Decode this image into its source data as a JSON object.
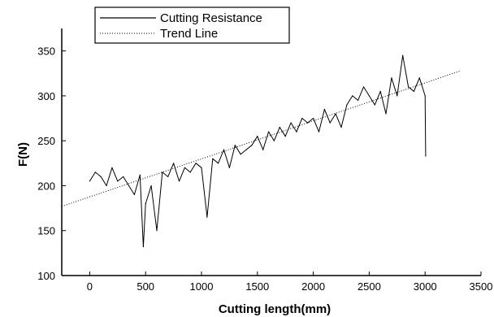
{
  "chart_data": {
    "type": "line",
    "xlabel": "Cutting length(mm)",
    "ylabel": "F(N)",
    "xlim": [
      -250,
      3500
    ],
    "ylim": [
      100,
      375
    ],
    "x_ticks": [
      0,
      500,
      1000,
      1500,
      2000,
      2500,
      3000,
      3500
    ],
    "y_ticks": [
      100,
      150,
      200,
      250,
      300,
      350
    ],
    "x_tick_labels": [
      "0",
      "500",
      "1000",
      "1500",
      "2000",
      "2500",
      "3000",
      "3500"
    ],
    "y_tick_labels": [
      "100",
      "150",
      "200",
      "250",
      "300",
      "350"
    ],
    "legend_position": "top-left",
    "series": [
      {
        "name": "Cutting Resistance",
        "style": "solid",
        "color": "#000000",
        "x": [
          0,
          50,
          100,
          150,
          200,
          250,
          300,
          350,
          400,
          450,
          480,
          500,
          550,
          600,
          650,
          700,
          750,
          800,
          850,
          900,
          950,
          1000,
          1050,
          1100,
          1150,
          1200,
          1250,
          1300,
          1350,
          1400,
          1450,
          1500,
          1550,
          1600,
          1650,
          1700,
          1750,
          1800,
          1850,
          1900,
          1950,
          2000,
          2050,
          2100,
          2150,
          2200,
          2250,
          2300,
          2350,
          2400,
          2450,
          2500,
          2550,
          2600,
          2650,
          2700,
          2750,
          2800,
          2850,
          2900,
          2950,
          3000,
          3005
        ],
        "y": [
          205,
          215,
          210,
          200,
          220,
          205,
          210,
          200,
          190,
          212,
          132,
          180,
          200,
          150,
          215,
          210,
          225,
          205,
          220,
          215,
          225,
          220,
          165,
          230,
          225,
          240,
          220,
          245,
          235,
          240,
          245,
          255,
          240,
          260,
          250,
          265,
          255,
          270,
          260,
          275,
          270,
          275,
          260,
          285,
          270,
          280,
          265,
          290,
          300,
          295,
          310,
          300,
          290,
          305,
          280,
          320,
          300,
          345,
          310,
          305,
          320,
          300,
          233
        ]
      },
      {
        "name": "Trend Line",
        "style": "dotted",
        "color": "#000000",
        "x": [
          -250,
          3320
        ],
        "y": [
          177,
          328
        ]
      }
    ]
  }
}
